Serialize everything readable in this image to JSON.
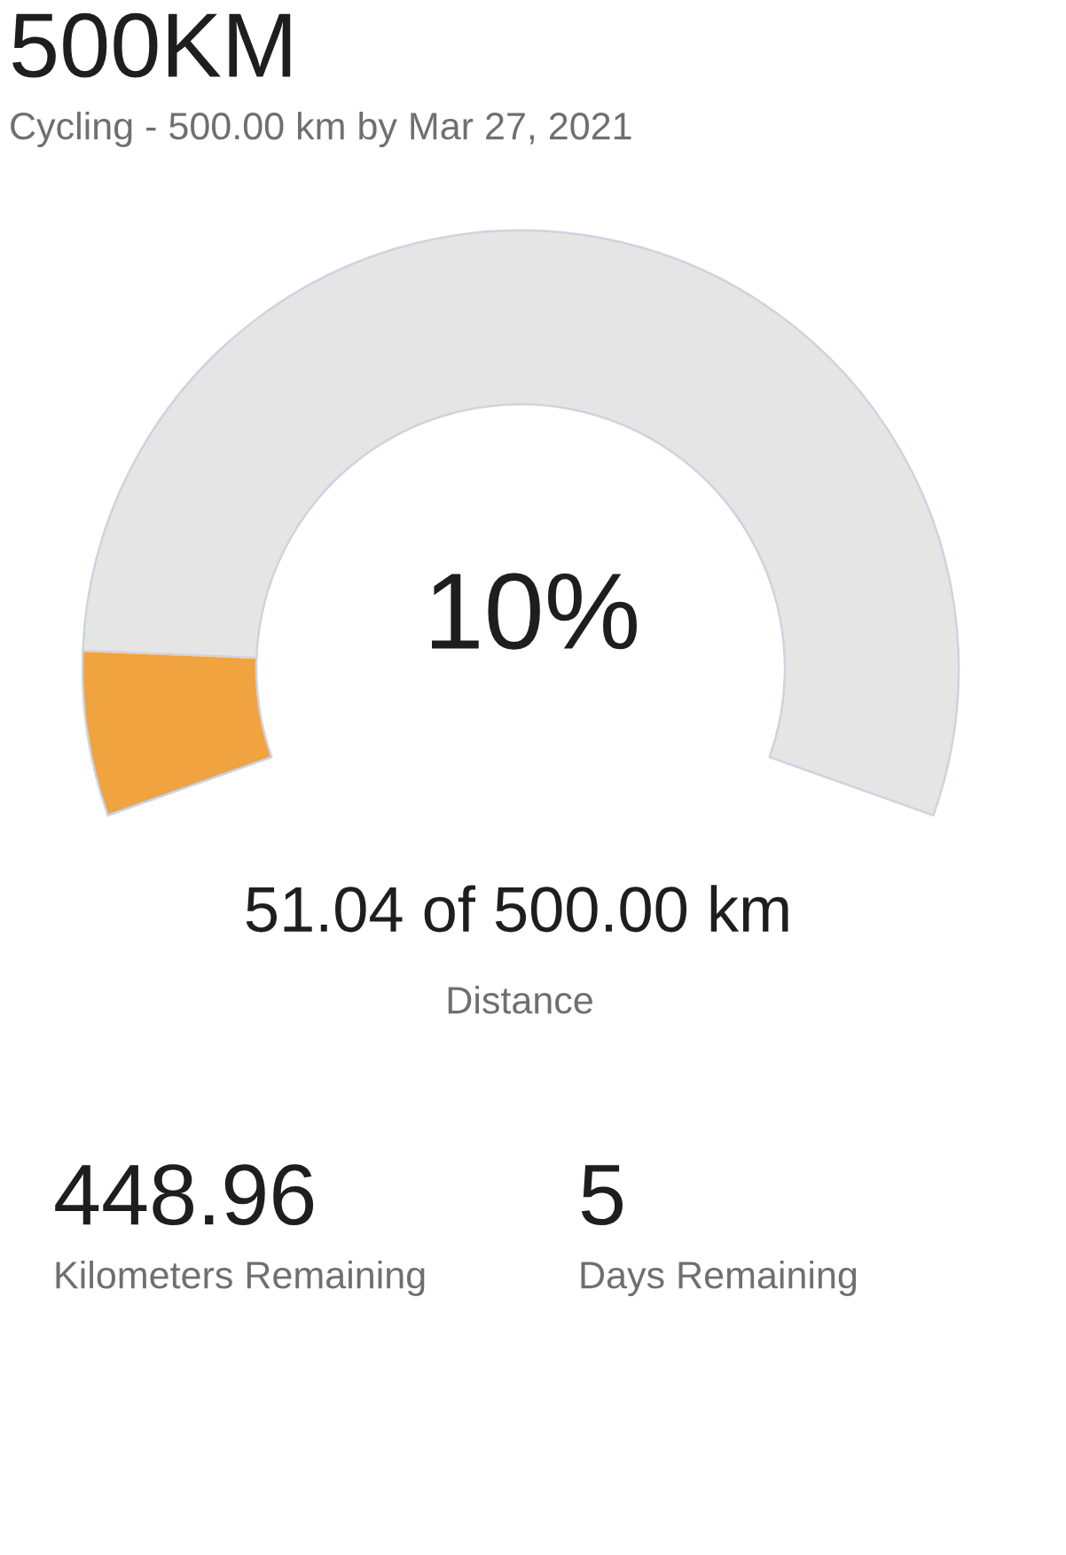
{
  "chart_data": [
    {
      "type": "donut",
      "title": "500KM",
      "subtitle": "Cycling - 500.00 km by Mar 27, 2021",
      "categories": [
        null,
        null
      ],
      "values": [
        10,
        90
      ],
      "colors": [
        "#f0a33e",
        "#e5e5e5"
      ],
      "annotations": [
        "10%",
        "51.04 of 500.00 km",
        "Distance"
      ]
    },
    {
      "type": "other",
      "annotations": [
        "448.96",
        "Kilometers Remaining",
        "5",
        "Days Remaining"
      ]
    }
  ]
}
